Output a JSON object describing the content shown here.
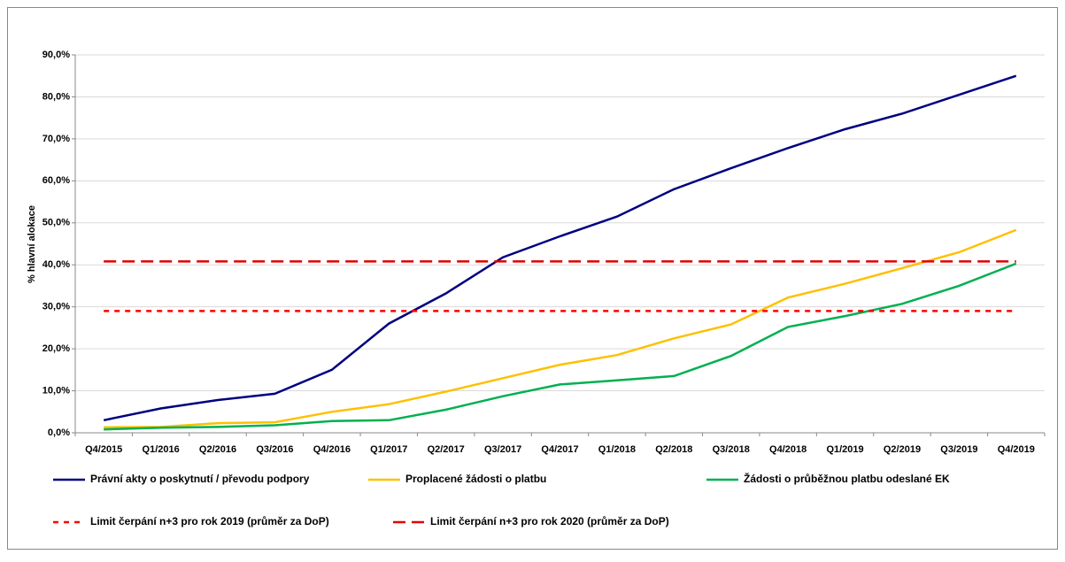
{
  "chart_data": {
    "type": "line",
    "y_label": "% hlavní alokace",
    "categories": [
      "Q4/2015",
      "Q1/2016",
      "Q2/2016",
      "Q3/2016",
      "Q4/2016",
      "Q1/2017",
      "Q2/2017",
      "Q3/2017",
      "Q4/2017",
      "Q1/2018",
      "Q2/2018",
      "Q3/2018",
      "Q4/2018",
      "Q1/2019",
      "Q2/2019",
      "Q3/2019",
      "Q4/2019"
    ],
    "series": [
      {
        "name": "Právní akty o poskytnutí / převodu podpory",
        "color": "#000080",
        "style": "solid",
        "values": [
          3.0,
          5.8,
          7.8,
          9.3,
          15.0,
          26.0,
          33.2,
          41.8,
          46.8,
          51.5,
          58.0,
          63.0,
          67.8,
          72.3,
          76.0,
          80.5,
          85.0
        ]
      },
      {
        "name": "Proplacené žádosti o platbu",
        "color": "#FFC000",
        "style": "solid",
        "values": [
          1.3,
          1.4,
          2.3,
          2.5,
          5.0,
          6.8,
          9.8,
          13.0,
          16.2,
          18.5,
          22.5,
          25.8,
          32.2,
          35.5,
          39.2,
          43.0,
          48.3
        ]
      },
      {
        "name": "Žádosti o průběžnou platbu odeslané EK",
        "color": "#00B050",
        "style": "solid",
        "values": [
          0.8,
          1.2,
          1.4,
          1.8,
          2.8,
          3.0,
          5.5,
          8.7,
          11.5,
          12.5,
          13.5,
          18.3,
          25.2,
          27.8,
          30.7,
          35.0,
          40.3
        ]
      },
      {
        "name": "Limit čerpání n+3 pro rok 2019 (průměr za DoP)",
        "color": "#FF0000",
        "style": "dashed",
        "values": [
          29.0,
          29.0,
          29.0,
          29.0,
          29.0,
          29.0,
          29.0,
          29.0,
          29.0,
          29.0,
          29.0,
          29.0,
          29.0,
          29.0,
          29.0,
          29.0,
          29.0
        ]
      },
      {
        "name": "Limit čerpání n+3 pro rok 2020 (průměr za DoP)",
        "color": "#E00000",
        "style": "long-dashed",
        "values": [
          40.8,
          40.8,
          40.8,
          40.8,
          40.8,
          40.8,
          40.8,
          40.8,
          40.8,
          40.8,
          40.8,
          40.8,
          40.8,
          40.8,
          40.8,
          40.8,
          40.8
        ]
      }
    ],
    "ylim": [
      0,
      90
    ],
    "yticks": [
      {
        "value": 0,
        "label": "0,0%"
      },
      {
        "value": 10,
        "label": "10,0%"
      },
      {
        "value": 20,
        "label": "20,0%"
      },
      {
        "value": 30,
        "label": "30,0%"
      },
      {
        "value": 40,
        "label": "40,0%"
      },
      {
        "value": 50,
        "label": "50,0%"
      },
      {
        "value": 60,
        "label": "60,0%"
      },
      {
        "value": 70,
        "label": "70,0%"
      },
      {
        "value": 80,
        "label": "80,0%"
      },
      {
        "value": 90,
        "label": "90,0%"
      }
    ],
    "grid": true
  }
}
